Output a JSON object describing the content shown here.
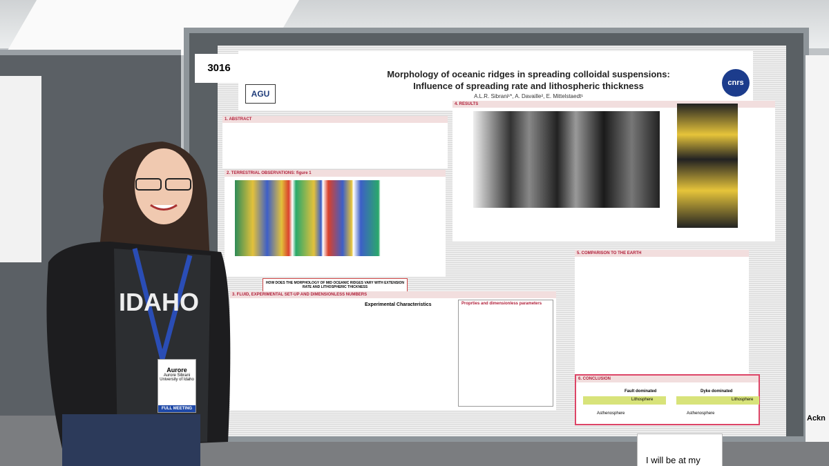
{
  "poster": {
    "number": "3016",
    "title_line1": "Morphology of oceanic ridges in spreading colloidal suspensions:",
    "title_line2": "Influence of spreading rate and lithospheric thickness",
    "authors": "A.L.R. Sibrani¹*, A. Davaille², E. Mittelstaedt¹",
    "logos": [
      "AGU",
      "cnrs"
    ],
    "sections": {
      "abstract": "1. ABSTRACT",
      "terrestrial": "2. TERRESTRIAL OBSERVATIONS: figure 1",
      "question": "HOW DOES THE MORPHOLOGY OF MID OCEANIC RIDGES VARY WITH EXTENSION RATE AND LITHOSPHERIC THICKNESS",
      "fluid": "3. FLUID, EXPERIMENTAL SET-UP AND DIMENSIONLESS NUMBERS",
      "experimental": "Experimental Characteristics",
      "properties": "Proprties and dimensionless parameters",
      "results": "4. RESULTS",
      "comparison": "5. COMPARISON TO THE EARTH",
      "conclusion": "6. CONCLUSION"
    },
    "conclusion_labels": [
      "Fault dominated",
      "Dyke dominated",
      "Lithosphere",
      "Asthenosphere",
      "Lithosphere",
      "Asthenosphere"
    ]
  },
  "badge": {
    "name": "Aurore",
    "full_name": "Aurore Sibrani",
    "affiliation": "University of Idaho",
    "type": "FULL MEETING"
  },
  "shirt": "IDAHO",
  "side_poster": "Ackn",
  "sign": "I will be at my"
}
